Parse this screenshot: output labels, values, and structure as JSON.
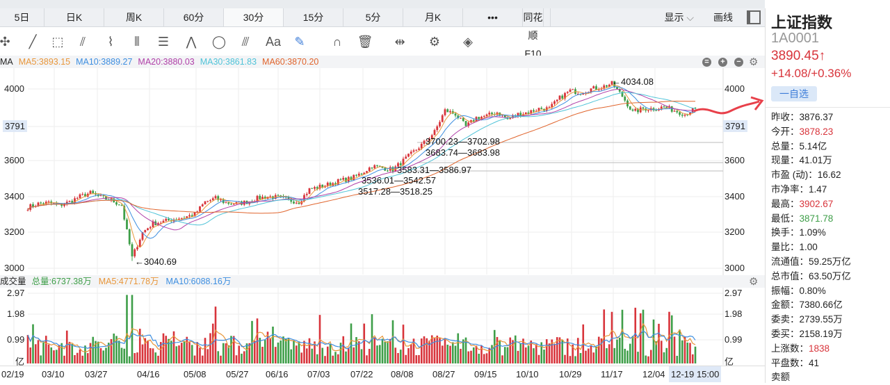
{
  "tabs": [
    {
      "label": "5日"
    },
    {
      "label": "日K"
    },
    {
      "label": "周K"
    },
    {
      "label": "60分"
    },
    {
      "label": "30分",
      "active": true
    },
    {
      "label": "15分"
    },
    {
      "label": "5分"
    },
    {
      "label": "月K"
    },
    {
      "label": "•••"
    },
    {
      "label": "同花顺F10"
    }
  ],
  "tabs_right": {
    "display": "显示",
    "draw": "画线"
  },
  "toolbar": [
    {
      "icon": "move-icon",
      "glyph": "✣"
    },
    {
      "icon": "line-icon",
      "glyph": "╱"
    },
    {
      "icon": "rectangle-icon",
      "glyph": "⬚"
    },
    {
      "icon": "fan-icon",
      "glyph": "⫽"
    },
    {
      "icon": "channel-icon",
      "glyph": "⌇"
    },
    {
      "icon": "vertical-lines-icon",
      "glyph": "⦀"
    },
    {
      "icon": "text-box-icon",
      "glyph": "☰"
    },
    {
      "icon": "wave-icon",
      "glyph": "⋀"
    },
    {
      "icon": "circle-icon",
      "glyph": "◯"
    },
    {
      "icon": "fibonacci-icon",
      "glyph": "⫻"
    },
    {
      "icon": "text-icon",
      "glyph": "Aa"
    },
    {
      "icon": "pen-icon",
      "glyph": "✎"
    },
    {
      "icon": "magnet-icon",
      "glyph": "∩"
    },
    {
      "icon": "trash-icon",
      "glyph": "🗑"
    },
    {
      "icon": "split-icon",
      "glyph": "⇹"
    },
    {
      "icon": "settings-icon",
      "glyph": "⚙"
    },
    {
      "icon": "layers-icon",
      "glyph": "◈"
    }
  ],
  "ma_legend": {
    "label": "MA",
    "items": [
      {
        "text": "MA5:3893.15",
        "color": "#e8963a"
      },
      {
        "text": "MA10:3889.27",
        "color": "#3d8ee0"
      },
      {
        "text": "MA20:3880.03",
        "color": "#b03fa8"
      },
      {
        "text": "MA30:3861.83",
        "color": "#4fc3d8"
      },
      {
        "text": "MA60:3870.20",
        "color": "#e0642c"
      }
    ]
  },
  "vol_legend": {
    "label": "成交量",
    "items": [
      {
        "text": "总量:6737.38万",
        "color": "#3e9e48"
      },
      {
        "text": "MA5:4771.78万",
        "color": "#e8963a"
      },
      {
        "text": "MA10:6088.16万",
        "color": "#3d8ee0"
      }
    ]
  },
  "colors": {
    "up": "#d8343b",
    "down": "#3e9e48"
  },
  "chart_data": {
    "type": "candlestick",
    "price_ticks": [
      "4000",
      "3600",
      "3400",
      "3200",
      "3000"
    ],
    "current_price_label": "3791",
    "ylim": [
      3000,
      4000
    ],
    "close_approx": [
      3340,
      3360,
      3365,
      3350,
      3370,
      3400,
      3420,
      3395,
      3380,
      3350,
      3060,
      3200,
      3250,
      3260,
      3275,
      3285,
      3300,
      3370,
      3390,
      3365,
      3360,
      3370,
      3390,
      3400,
      3395,
      3380,
      3370,
      3440,
      3455,
      3470,
      3490,
      3500,
      3530,
      3570,
      3560,
      3550,
      3600,
      3650,
      3700,
      3760,
      3880,
      3860,
      3790,
      3840,
      3850,
      3870,
      3830,
      3860,
      3870,
      3890,
      3890,
      3950,
      3990,
      3980,
      4000,
      4010,
      4030,
      3960,
      3870,
      3890,
      3890,
      3900,
      3880,
      3860,
      3890
    ],
    "annotations": {
      "high": "←4034.08",
      "low": "←3040.69",
      "ranges": [
        "3700.23—3702.98",
        "3683.74—3683.98",
        "3583.31—3586.97",
        "3536.01—3542.57",
        "3517.28—3518.25"
      ]
    },
    "volume_ticks": [
      "2.97",
      "1.98",
      "0.99",
      "亿"
    ],
    "volume_max": 2.97,
    "dates": [
      "02/19",
      "03/10",
      "03/27",
      "04/16",
      "05/08",
      "05/27",
      "06/16",
      "07/03",
      "07/22",
      "08/08",
      "08/27",
      "09/15",
      "10/10",
      "10/29",
      "11/17",
      "12/04"
    ],
    "current_time": "12-19 15:00"
  },
  "panel": {
    "name": "上证指数",
    "code": "1A0001",
    "price": "3890.45↑",
    "change": "+14.08/+0.36%",
    "fav": "一自选",
    "rows": [
      {
        "k": "昨收：",
        "v": "3876.37",
        "c": ""
      },
      {
        "k": "今开：",
        "v": "3878.23",
        "c": "red"
      },
      {
        "k": "总量：",
        "v": "5.14亿",
        "c": ""
      },
      {
        "k": "现量：",
        "v": "41.01万",
        "c": ""
      },
      {
        "k": "市盈 (动)：",
        "v": "16.62",
        "c": ""
      },
      {
        "k": "市净率：",
        "v": "1.47",
        "c": ""
      },
      {
        "k": "最高：",
        "v": "3902.67",
        "c": "red"
      },
      {
        "k": "最低：",
        "v": "3871.78",
        "c": "green"
      },
      {
        "k": "换手：",
        "v": "1.09%",
        "c": ""
      },
      {
        "k": "量比：",
        "v": "1.00",
        "c": ""
      },
      {
        "k": "流通值：",
        "v": "59.25万亿",
        "c": ""
      },
      {
        "k": "总市值：",
        "v": "63.50万亿",
        "c": ""
      },
      {
        "k": "振幅：",
        "v": "0.80%",
        "c": ""
      },
      {
        "k": "金额：",
        "v": "7380.66亿",
        "c": ""
      },
      {
        "k": "委卖：",
        "v": "2739.55万",
        "c": ""
      },
      {
        "k": "委买：",
        "v": "2158.19万",
        "c": ""
      },
      {
        "k": "上涨数：",
        "v": "1838",
        "c": "red"
      },
      {
        "k": "平盘数：",
        "v": "41",
        "c": ""
      },
      {
        "k": "卖额",
        "v": "",
        "c": ""
      }
    ]
  }
}
